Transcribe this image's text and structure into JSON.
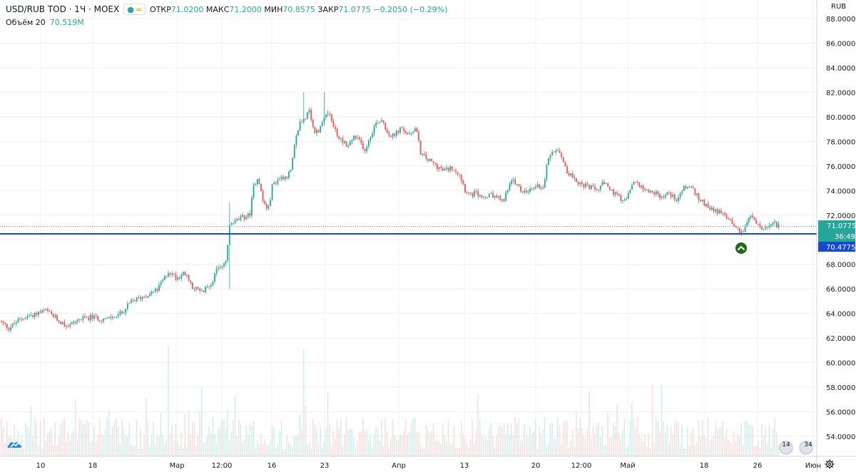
{
  "header": {
    "symbol": "USD/RUB TOD · 1Ч · MOEX",
    "open_label": "ОТКР",
    "open": "71.0200",
    "high_label": "МАКС",
    "high": "71.2000",
    "low_label": "МИН",
    "low": "70.8575",
    "close_label": "ЗАКР",
    "close": "71.0775",
    "change": "−0.2050 (−0.29%)"
  },
  "volume": {
    "label": "Объём 20",
    "value": "70.519M"
  },
  "currency": "RUB",
  "price_badge": {
    "price": "71.0775",
    "countdown": "36:49"
  },
  "hline_badge": "70.4775",
  "event_badges": [
    "14",
    "34"
  ],
  "colors": {
    "up": "#26a69a",
    "down": "#ef5350",
    "hline": "#1848cc",
    "grid": "#eef0f3"
  },
  "chart_data": {
    "type": "candlestick",
    "ylim": [
      53,
      89
    ],
    "y_ticks": [
      "88.0000",
      "86.0000",
      "84.0000",
      "82.0000",
      "80.0000",
      "78.0000",
      "76.0000",
      "74.0000",
      "72.0000",
      "70.0000",
      "68.0000",
      "66.0000",
      "64.0000",
      "62.0000",
      "60.0000",
      "58.0000",
      "56.0000",
      "54.0000"
    ],
    "x_ticks": [
      "10",
      "18",
      "Мар",
      "12:00",
      "16",
      "23",
      "Апр",
      "13",
      "20",
      "12:00",
      "Май",
      "18",
      "26",
      "Июн"
    ],
    "horizontal_line": 70.4775,
    "last_price": 71.0775,
    "close_path": [
      [
        0,
        63.4
      ],
      [
        12,
        62.8
      ],
      [
        30,
        63.6
      ],
      [
        50,
        64.0
      ],
      [
        65,
        64.2
      ],
      [
        85,
        63.3
      ],
      [
        95,
        63.0
      ],
      [
        110,
        63.5
      ],
      [
        128,
        63.7
      ],
      [
        150,
        63.5
      ],
      [
        170,
        64.0
      ],
      [
        185,
        65.0
      ],
      [
        205,
        65.5
      ],
      [
        220,
        65.9
      ],
      [
        236,
        67.4
      ],
      [
        248,
        66.9
      ],
      [
        258,
        67.3
      ],
      [
        270,
        66.2
      ],
      [
        283,
        65.7
      ],
      [
        295,
        66.4
      ],
      [
        305,
        67.6
      ],
      [
        317,
        68.3
      ],
      [
        322,
        71.2
      ],
      [
        330,
        71.5
      ],
      [
        340,
        71.8
      ],
      [
        350,
        72.0
      ],
      [
        356,
        74.5
      ],
      [
        362,
        75.2
      ],
      [
        368,
        73.2
      ],
      [
        376,
        72.4
      ],
      [
        382,
        74.5
      ],
      [
        392,
        75.0
      ],
      [
        402,
        75.2
      ],
      [
        408,
        75.6
      ],
      [
        414,
        78.0
      ],
      [
        420,
        79.5
      ],
      [
        426,
        79.8
      ],
      [
        434,
        80.4
      ],
      [
        440,
        78.7
      ],
      [
        446,
        78.9
      ],
      [
        452,
        79.5
      ],
      [
        458,
        80.6
      ],
      [
        466,
        79.5
      ],
      [
        474,
        78.3
      ],
      [
        482,
        78.0
      ],
      [
        488,
        77.6
      ],
      [
        496,
        78.4
      ],
      [
        504,
        78.0
      ],
      [
        512,
        77.3
      ],
      [
        520,
        78.6
      ],
      [
        528,
        79.6
      ],
      [
        536,
        79.8
      ],
      [
        544,
        78.6
      ],
      [
        552,
        78.4
      ],
      [
        560,
        79.0
      ],
      [
        568,
        78.8
      ],
      [
        576,
        78.4
      ],
      [
        582,
        79.3
      ],
      [
        590,
        77.0
      ],
      [
        600,
        76.5
      ],
      [
        610,
        76.1
      ],
      [
        622,
        75.6
      ],
      [
        634,
        75.9
      ],
      [
        644,
        75.4
      ],
      [
        652,
        74.1
      ],
      [
        660,
        73.6
      ],
      [
        666,
        73.8
      ],
      [
        676,
        73.4
      ],
      [
        690,
        73.6
      ],
      [
        706,
        73.1
      ],
      [
        712,
        74.3
      ],
      [
        720,
        74.8
      ],
      [
        730,
        74.0
      ],
      [
        740,
        73.8
      ],
      [
        750,
        74.4
      ],
      [
        762,
        74.3
      ],
      [
        768,
        76.6
      ],
      [
        774,
        77.2
      ],
      [
        782,
        77.5
      ],
      [
        790,
        76.4
      ],
      [
        796,
        75.4
      ],
      [
        806,
        75.0
      ],
      [
        816,
        74.4
      ],
      [
        826,
        74.3
      ],
      [
        836,
        74.0
      ],
      [
        846,
        74.6
      ],
      [
        856,
        74.0
      ],
      [
        866,
        73.5
      ],
      [
        874,
        73.0
      ],
      [
        882,
        73.8
      ],
      [
        890,
        74.8
      ],
      [
        898,
        74.4
      ],
      [
        908,
        74.0
      ],
      [
        918,
        73.8
      ],
      [
        928,
        73.5
      ],
      [
        938,
        73.8
      ],
      [
        948,
        73.3
      ],
      [
        958,
        74.2
      ],
      [
        968,
        74.4
      ],
      [
        976,
        73.6
      ],
      [
        986,
        73.0
      ],
      [
        996,
        72.6
      ],
      [
        1006,
        72.3
      ],
      [
        1016,
        72.0
      ],
      [
        1026,
        71.5
      ],
      [
        1034,
        70.8
      ],
      [
        1042,
        70.7
      ],
      [
        1048,
        71.6
      ],
      [
        1054,
        71.9
      ],
      [
        1062,
        71.2
      ],
      [
        1070,
        70.8
      ],
      [
        1078,
        71.0
      ],
      [
        1086,
        71.3
      ],
      [
        1092,
        71.1
      ]
    ]
  }
}
